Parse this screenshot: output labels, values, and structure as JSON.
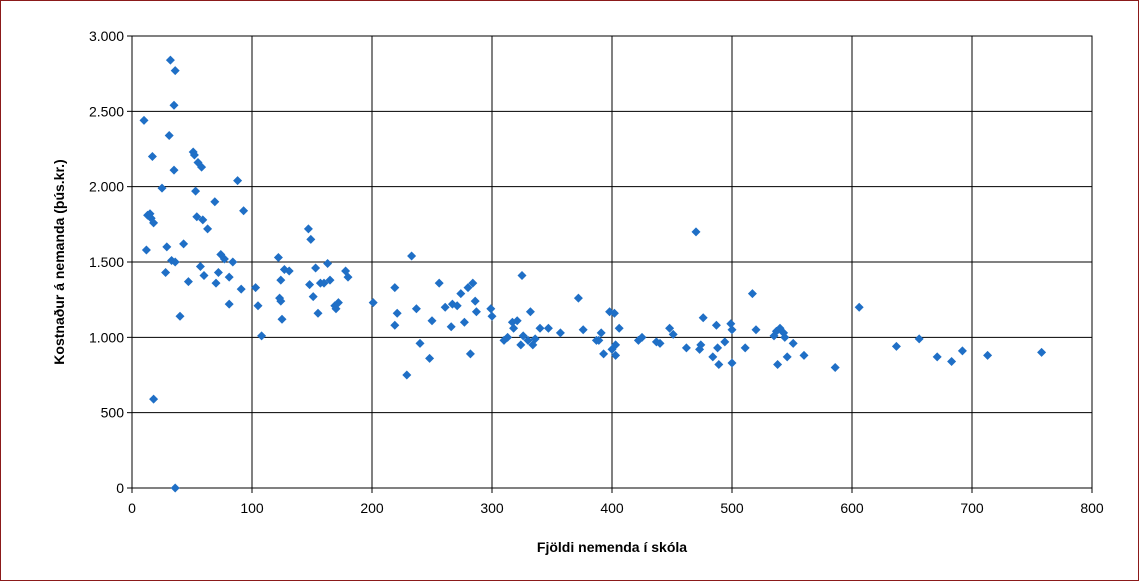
{
  "chart_data": {
    "type": "scatter",
    "title": "",
    "xlabel": "Fjöldi nemenda í skóla",
    "ylabel": "Kostnaður á nemanda (þús.kr.)",
    "xlim": [
      0,
      800
    ],
    "ylim": [
      0,
      3000
    ],
    "x_ticks": [
      0,
      100,
      200,
      300,
      400,
      500,
      600,
      700,
      800
    ],
    "y_ticks": [
      0,
      500,
      1000,
      1500,
      2000,
      2500,
      3000
    ],
    "x_tick_labels": [
      "0",
      "100",
      "200",
      "300",
      "400",
      "500",
      "600",
      "700",
      "800"
    ],
    "y_tick_labels": [
      "0",
      "500",
      "1.000",
      "1.500",
      "2.000",
      "2.500",
      "3.000"
    ],
    "grid": true,
    "marker_color": "#1f6fc6",
    "marker": "diamond",
    "points": [
      [
        10,
        2440
      ],
      [
        12,
        1580
      ],
      [
        13,
        1810
      ],
      [
        15,
        1820
      ],
      [
        16,
        1790
      ],
      [
        17,
        2200
      ],
      [
        18,
        1760
      ],
      [
        18,
        590
      ],
      [
        25,
        1990
      ],
      [
        28,
        1430
      ],
      [
        29,
        1600
      ],
      [
        31,
        2340
      ],
      [
        32,
        2840
      ],
      [
        33,
        1510
      ],
      [
        35,
        2540
      ],
      [
        35,
        2110
      ],
      [
        36,
        1500
      ],
      [
        36,
        2770
      ],
      [
        36,
        0
      ],
      [
        40,
        1140
      ],
      [
        43,
        1620
      ],
      [
        47,
        1370
      ],
      [
        51,
        2230
      ],
      [
        52,
        2210
      ],
      [
        53,
        1970
      ],
      [
        54,
        1800
      ],
      [
        55,
        2160
      ],
      [
        57,
        1470
      ],
      [
        58,
        2130
      ],
      [
        59,
        1780
      ],
      [
        60,
        1410
      ],
      [
        63,
        1720
      ],
      [
        69,
        1900
      ],
      [
        70,
        1360
      ],
      [
        72,
        1430
      ],
      [
        74,
        1550
      ],
      [
        77,
        1520
      ],
      [
        81,
        1400
      ],
      [
        81,
        1220
      ],
      [
        84,
        1500
      ],
      [
        88,
        2040
      ],
      [
        91,
        1320
      ],
      [
        93,
        1840
      ],
      [
        103,
        1330
      ],
      [
        105,
        1210
      ],
      [
        108,
        1010
      ],
      [
        122,
        1530
      ],
      [
        123,
        1260
      ],
      [
        124,
        1380
      ],
      [
        124,
        1240
      ],
      [
        125,
        1120
      ],
      [
        127,
        1450
      ],
      [
        131,
        1440
      ],
      [
        147,
        1720
      ],
      [
        148,
        1350
      ],
      [
        149,
        1650
      ],
      [
        151,
        1270
      ],
      [
        153,
        1460
      ],
      [
        155,
        1160
      ],
      [
        157,
        1360
      ],
      [
        160,
        1360
      ],
      [
        163,
        1490
      ],
      [
        165,
        1380
      ],
      [
        169,
        1210
      ],
      [
        170,
        1190
      ],
      [
        172,
        1230
      ],
      [
        178,
        1440
      ],
      [
        180,
        1400
      ],
      [
        201,
        1230
      ],
      [
        219,
        1080
      ],
      [
        219,
        1330
      ],
      [
        221,
        1160
      ],
      [
        229,
        750
      ],
      [
        233,
        1540
      ],
      [
        237,
        1190
      ],
      [
        240,
        960
      ],
      [
        248,
        860
      ],
      [
        250,
        1110
      ],
      [
        256,
        1360
      ],
      [
        261,
        1200
      ],
      [
        266,
        1070
      ],
      [
        267,
        1220
      ],
      [
        271,
        1210
      ],
      [
        274,
        1290
      ],
      [
        277,
        1100
      ],
      [
        280,
        1330
      ],
      [
        282,
        890
      ],
      [
        284,
        1360
      ],
      [
        286,
        1240
      ],
      [
        287,
        1170
      ],
      [
        299,
        1190
      ],
      [
        300,
        1140
      ],
      [
        310,
        980
      ],
      [
        313,
        1000
      ],
      [
        317,
        1100
      ],
      [
        318,
        1060
      ],
      [
        321,
        1110
      ],
      [
        324,
        950
      ],
      [
        325,
        1410
      ],
      [
        326,
        1010
      ],
      [
        330,
        980
      ],
      [
        332,
        1170
      ],
      [
        334,
        950
      ],
      [
        336,
        990
      ],
      [
        340,
        1060
      ],
      [
        347,
        1060
      ],
      [
        357,
        1030
      ],
      [
        372,
        1260
      ],
      [
        376,
        1050
      ],
      [
        387,
        980
      ],
      [
        389,
        980
      ],
      [
        391,
        1030
      ],
      [
        393,
        890
      ],
      [
        398,
        1170
      ],
      [
        400,
        920
      ],
      [
        402,
        1160
      ],
      [
        403,
        950
      ],
      [
        403,
        880
      ],
      [
        406,
        1060
      ],
      [
        422,
        980
      ],
      [
        425,
        1000
      ],
      [
        437,
        970
      ],
      [
        440,
        960
      ],
      [
        448,
        1060
      ],
      [
        451,
        1020
      ],
      [
        462,
        930
      ],
      [
        470,
        1700
      ],
      [
        473,
        920
      ],
      [
        474,
        950
      ],
      [
        476,
        1130
      ],
      [
        484,
        870
      ],
      [
        487,
        1080
      ],
      [
        488,
        930
      ],
      [
        489,
        820
      ],
      [
        494,
        970
      ],
      [
        499,
        1090
      ],
      [
        500,
        1050
      ],
      [
        500,
        830
      ],
      [
        511,
        930
      ],
      [
        517,
        1290
      ],
      [
        520,
        1050
      ],
      [
        535,
        1010
      ],
      [
        537,
        1040
      ],
      [
        538,
        820
      ],
      [
        540,
        1060
      ],
      [
        543,
        1030
      ],
      [
        544,
        1000
      ],
      [
        546,
        870
      ],
      [
        551,
        960
      ],
      [
        560,
        880
      ],
      [
        586,
        800
      ],
      [
        606,
        1200
      ],
      [
        637,
        940
      ],
      [
        656,
        990
      ],
      [
        671,
        870
      ],
      [
        683,
        840
      ],
      [
        692,
        910
      ],
      [
        713,
        880
      ],
      [
        758,
        900
      ]
    ]
  }
}
